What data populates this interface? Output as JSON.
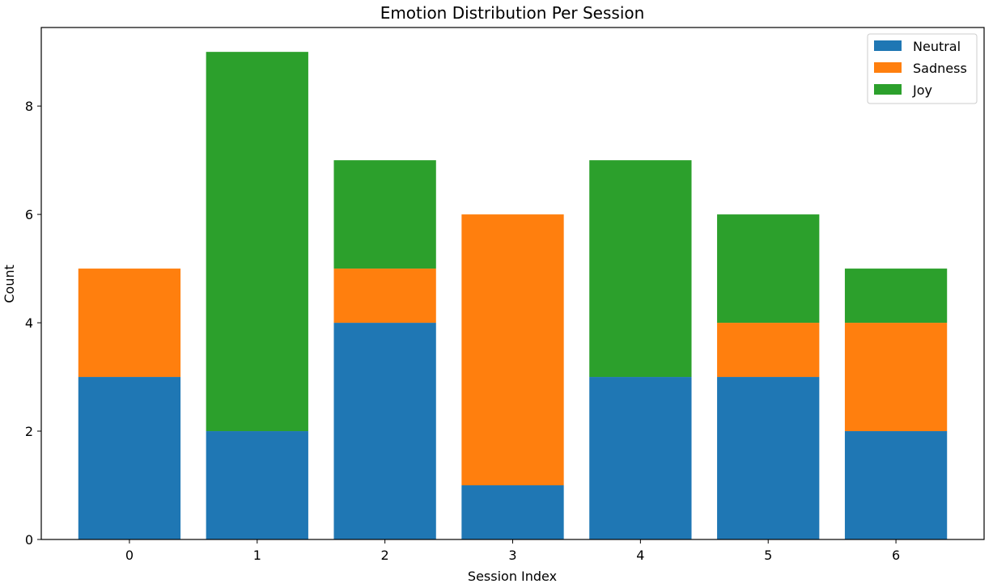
{
  "chart_data": {
    "type": "bar",
    "stacked": true,
    "title": "Emotion Distribution Per Session",
    "xlabel": "Session Index",
    "ylabel": "Count",
    "categories": [
      "0",
      "1",
      "2",
      "3",
      "4",
      "5",
      "6"
    ],
    "ylim": [
      0,
      9.45
    ],
    "yticks": [
      0,
      2,
      4,
      6,
      8
    ],
    "series": [
      {
        "name": "Neutral",
        "color": "#1f77b4",
        "values": [
          3,
          2,
          4,
          1,
          3,
          3,
          2
        ]
      },
      {
        "name": "Sadness",
        "color": "#ff7f0e",
        "values": [
          2,
          0,
          1,
          5,
          0,
          1,
          2
        ]
      },
      {
        "name": "Joy",
        "color": "#2ca02c",
        "values": [
          0,
          7,
          2,
          0,
          4,
          2,
          1
        ]
      }
    ],
    "legend_position": "top-right",
    "grid": false
  }
}
